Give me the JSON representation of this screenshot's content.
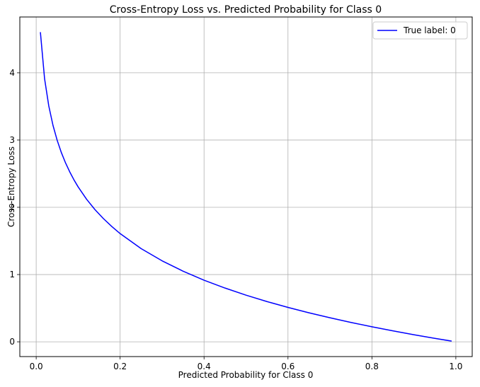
{
  "chart_data": {
    "type": "line",
    "title": "Cross-Entropy Loss vs. Predicted Probability for Class 0",
    "xlabel": "Predicted Probability for Class 0",
    "ylabel": "Cross-Entropy Loss",
    "xlim": [
      -0.039,
      1.039
    ],
    "ylim": [
      -0.22,
      4.83
    ],
    "x_ticks": [
      0.0,
      0.2,
      0.4,
      0.6,
      0.8,
      1.0
    ],
    "x_tick_labels": [
      "0.0",
      "0.2",
      "0.4",
      "0.6",
      "0.8",
      "1.0"
    ],
    "y_ticks": [
      0,
      1,
      2,
      3,
      4
    ],
    "y_tick_labels": [
      "0",
      "1",
      "2",
      "3",
      "4"
    ],
    "grid": true,
    "legend_position": "top-right",
    "series": [
      {
        "name": "True label: 0",
        "color": "#0000ff",
        "x": [
          0.01,
          0.02,
          0.03,
          0.04,
          0.05,
          0.06,
          0.07,
          0.08,
          0.09,
          0.1,
          0.12,
          0.14,
          0.16,
          0.18,
          0.2,
          0.25,
          0.3,
          0.35,
          0.4,
          0.45,
          0.5,
          0.55,
          0.6,
          0.65,
          0.7,
          0.75,
          0.8,
          0.85,
          0.9,
          0.95,
          0.99
        ],
        "y": [
          4.605,
          3.912,
          3.507,
          3.219,
          2.996,
          2.813,
          2.659,
          2.526,
          2.408,
          2.303,
          2.12,
          1.966,
          1.833,
          1.715,
          1.609,
          1.386,
          1.204,
          1.05,
          0.916,
          0.799,
          0.693,
          0.598,
          0.511,
          0.431,
          0.357,
          0.288,
          0.223,
          0.163,
          0.105,
          0.051,
          0.01
        ]
      }
    ]
  }
}
